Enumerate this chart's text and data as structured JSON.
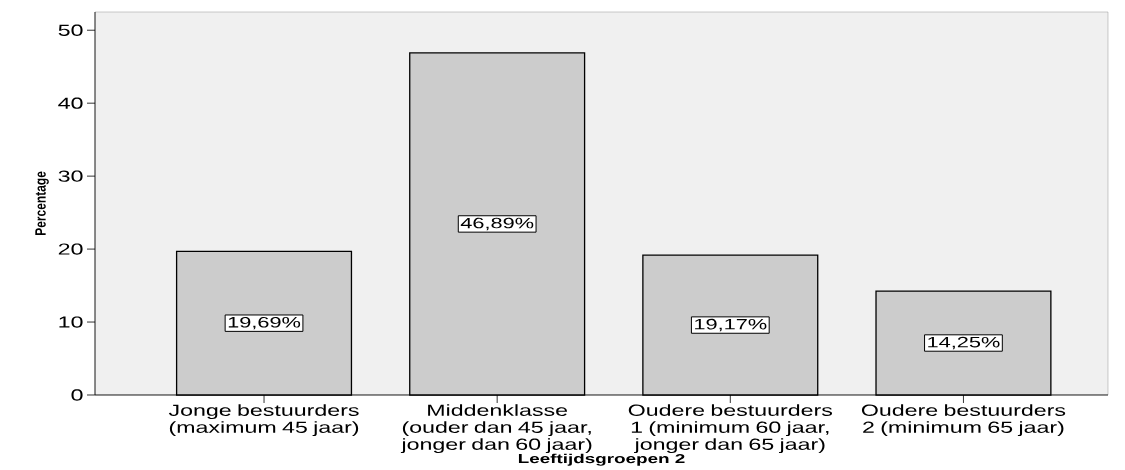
{
  "chart_data": {
    "type": "bar",
    "xlabel": "Leeftijdsgroepen 2",
    "ylabel": "Percentage",
    "categories": [
      "Jonge bestuurders (maximum 45 jaar)",
      "Middenklasse (ouder dan 45 jaar, jonger dan 60 jaar)",
      "Oudere bestuurders 1 (minimum 60 jaar, jonger dan 65 jaar)",
      "Oudere bestuurders 2 (minimum 65 jaar)"
    ],
    "values": [
      19.69,
      46.89,
      19.17,
      14.25
    ],
    "value_labels": [
      "19,69%",
      "46,89%",
      "19,17%",
      "14,25%"
    ],
    "color": "#cccccc",
    "ylim": [
      0,
      52.5
    ],
    "yticks": [
      0,
      10,
      20,
      30,
      40,
      50
    ],
    "grid": false
  }
}
